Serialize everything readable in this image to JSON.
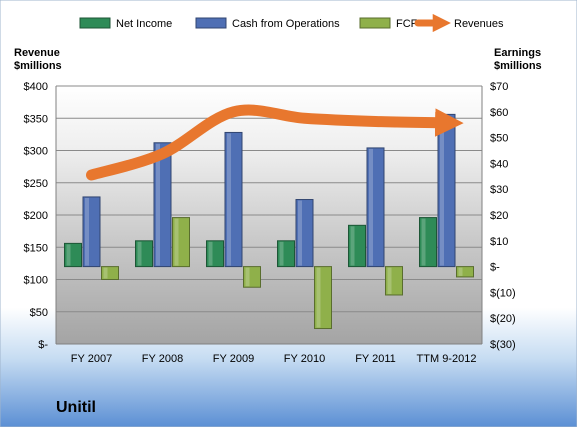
{
  "chart_data": {
    "type": "bar",
    "title": "Unitil",
    "categories": [
      "FY 2007",
      "FY 2008",
      "FY 2009",
      "FY 2010",
      "FY 2011",
      "TTM 9-2012"
    ],
    "left_axis": {
      "label_line1": "Revenue",
      "label_line2": "$millions",
      "range": [
        0,
        400
      ],
      "tick_values": [
        0,
        50,
        100,
        150,
        200,
        250,
        300,
        350,
        400
      ],
      "tick_labels": [
        "$-",
        "$50",
        "$100",
        "$150",
        "$200",
        "$250",
        "$300",
        "$350",
        "$400"
      ]
    },
    "right_axis": {
      "label_line1": "Earnings",
      "label_line2": "$millions",
      "range": [
        -30,
        70
      ],
      "tick_values": [
        -30,
        -20,
        -10,
        0,
        10,
        20,
        30,
        40,
        50,
        60,
        70
      ],
      "tick_labels": [
        "$(30)",
        "$(20)",
        "$(10)",
        "$-",
        "$10",
        "$20",
        "$30",
        "$40",
        "$50",
        "$60",
        "$70"
      ]
    },
    "series": [
      {
        "name": "Net Income",
        "axis": "right",
        "kind": "bar",
        "color": "#2e8b57",
        "values": [
          9,
          10,
          10,
          10,
          16,
          19
        ]
      },
      {
        "name": "Cash from Operations",
        "axis": "right",
        "kind": "bar",
        "color": "#4f6fb4",
        "values": [
          27,
          48,
          52,
          26,
          46,
          59
        ]
      },
      {
        "name": "FCF",
        "axis": "right",
        "kind": "bar",
        "color": "#8fb04a",
        "values": [
          -5,
          19,
          -8,
          -24,
          -11,
          -4
        ]
      },
      {
        "name": "Revenues",
        "axis": "left",
        "kind": "line",
        "color": "#e8772e",
        "values": [
          262,
          295,
          360,
          350,
          345,
          343
        ]
      }
    ],
    "grid": true,
    "legend_position": "top"
  }
}
